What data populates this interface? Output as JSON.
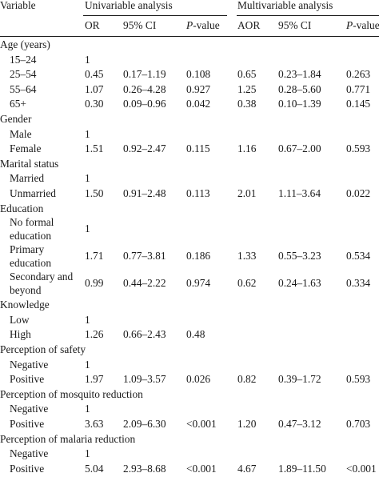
{
  "header": {
    "variable": "Variable",
    "univariable": "Univariable analysis",
    "multivariable": "Multivariable analysis",
    "or": "OR",
    "ci1": "95% CI",
    "p1_italic": "P",
    "p1_rest": "-value",
    "aor": "AOR",
    "ci2": "95% CI",
    "p2_italic": "P",
    "p2_rest": "-value"
  },
  "rows": [
    {
      "label": "Age (years)",
      "kind": "group"
    },
    {
      "label": "15–24",
      "or": "1",
      "ci": "",
      "p": "",
      "aor": "",
      "aci": "",
      "ap": ""
    },
    {
      "label": "25–54",
      "or": "0.45",
      "ci": "0.17–1.19",
      "p": "0.108",
      "aor": "0.65",
      "aci": "0.23–1.84",
      "ap": "0.263"
    },
    {
      "label": "55–64",
      "or": "1.07",
      "ci": "0.26–4.28",
      "p": "0.927",
      "aor": "1.25",
      "aci": "0.28–5.60",
      "ap": "0.771"
    },
    {
      "label": "65+",
      "or": "0.30",
      "ci": "0.09–0.96",
      "p": "0.042",
      "aor": "0.38",
      "aci": "0.10–1.39",
      "ap": "0.145"
    },
    {
      "label": "Gender",
      "kind": "group"
    },
    {
      "label": "Male",
      "or": "1",
      "ci": "",
      "p": "",
      "aor": "",
      "aci": "",
      "ap": ""
    },
    {
      "label": "Female",
      "or": "1.51",
      "ci": "0.92–2.47",
      "p": "0.115",
      "aor": "1.16",
      "aci": "0.67–2.00",
      "ap": "0.593"
    },
    {
      "label": "Marital status",
      "kind": "group"
    },
    {
      "label": "Married",
      "or": "1",
      "ci": "",
      "p": "",
      "aor": "",
      "aci": "",
      "ap": ""
    },
    {
      "label": "Unmarried",
      "or": "1.50",
      "ci": "0.91–2.48",
      "p": "0.113",
      "aor": "2.01",
      "aci": "1.11–3.64",
      "ap": "0.022"
    },
    {
      "label": "Education",
      "kind": "group"
    },
    {
      "label": "No formal education",
      "or": "1",
      "ci": "",
      "p": "",
      "aor": "",
      "aci": "",
      "ap": ""
    },
    {
      "label": "Primary education",
      "or": "1.71",
      "ci": "0.77–3.81",
      "p": "0.186",
      "aor": "1.33",
      "aci": "0.55–3.23",
      "ap": "0.534"
    },
    {
      "label": "Secondary and beyond",
      "or": "0.99",
      "ci": "0.44–2.22",
      "p": "0.974",
      "aor": "0.62",
      "aci": "0.24–1.63",
      "ap": "0.334"
    },
    {
      "label": "Knowledge",
      "kind": "group"
    },
    {
      "label": "Low",
      "or": "1",
      "ci": "",
      "p": "",
      "aor": "",
      "aci": "",
      "ap": ""
    },
    {
      "label": "High",
      "or": "1.26",
      "ci": "0.66–2.43",
      "p": "0.48",
      "aor": "",
      "aci": "",
      "ap": ""
    },
    {
      "label": "Perception of safety",
      "kind": "group"
    },
    {
      "label": "Negative",
      "or": "1",
      "ci": "",
      "p": "",
      "aor": "",
      "aci": "",
      "ap": ""
    },
    {
      "label": "Positive",
      "or": "1.97",
      "ci": "1.09–3.57",
      "p": "0.026",
      "aor": "0.82",
      "aci": "0.39–1.72",
      "ap": "0.593"
    },
    {
      "label": "Perception of mosquito reduction",
      "kind": "group"
    },
    {
      "label": "Negative",
      "or": "1",
      "ci": "",
      "p": "",
      "aor": "",
      "aci": "",
      "ap": ""
    },
    {
      "label": "Positive",
      "or": "3.63",
      "ci": "2.09–6.30",
      "p": "<0.001",
      "aor": "1.20",
      "aci": "0.47–3.12",
      "ap": "0.703"
    },
    {
      "label": "Perception of malaria reduction",
      "kind": "group"
    },
    {
      "label": "Negative",
      "or": "1",
      "ci": "",
      "p": "",
      "aor": "",
      "aci": "",
      "ap": ""
    },
    {
      "label": "Positive",
      "or": "5.04",
      "ci": "2.93–8.68",
      "p": "<0.001",
      "aor": "4.67",
      "aci": "1.89–11.50",
      "ap": "<0.001"
    }
  ]
}
